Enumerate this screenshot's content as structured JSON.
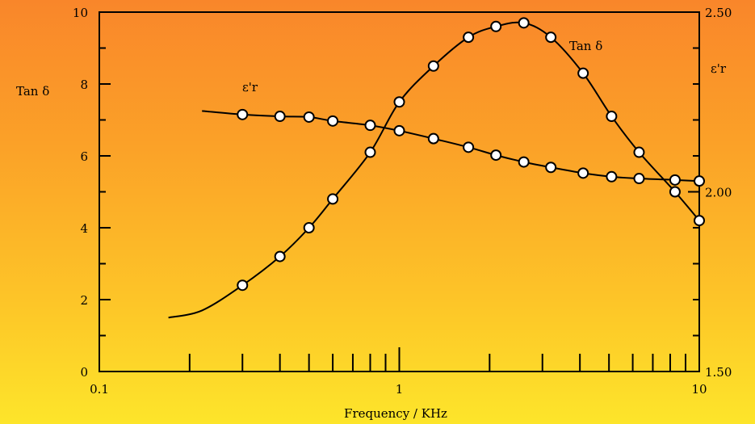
{
  "chart_data": {
    "type": "line",
    "xlabel": "Frequency / KHz",
    "xscale": "log",
    "xlim": [
      0.1,
      10
    ],
    "x_ticks": [
      "0.1",
      "1",
      "10"
    ],
    "ylabel_left": "Tan δ",
    "ylim_left": [
      0,
      10
    ],
    "y_ticks_left": [
      "0",
      "2",
      "4",
      "6",
      "8",
      "10"
    ],
    "ylabel_right": "ε'r",
    "ylim_right": [
      1.5,
      2.5
    ],
    "y_ticks_right": [
      "1.50",
      "2.00",
      "2.50"
    ],
    "grid": false,
    "series": [
      {
        "name": "Tan δ",
        "axis": "left",
        "x": [
          0.3,
          0.4,
          0.5,
          0.6,
          0.8,
          1.0,
          1.3,
          1.7,
          2.1,
          2.6,
          3.2,
          4.1,
          5.1,
          6.3,
          8.3,
          10
        ],
        "y": [
          2.4,
          3.2,
          4.0,
          4.8,
          6.1,
          7.5,
          8.5,
          9.3,
          9.6,
          9.7,
          9.3,
          8.3,
          7.1,
          6.1,
          5.0,
          4.2
        ]
      },
      {
        "name": "ε'r",
        "axis": "right",
        "x": [
          0.3,
          0.4,
          0.5,
          0.6,
          0.8,
          1.0,
          1.3,
          1.7,
          2.1,
          2.6,
          3.2,
          4.1,
          5.1,
          6.3,
          8.3,
          10
        ],
        "y": [
          2.215,
          2.21,
          2.208,
          2.197,
          2.185,
          2.17,
          2.148,
          2.124,
          2.102,
          2.083,
          2.068,
          2.052,
          2.042,
          2.037,
          2.033,
          2.03
        ]
      }
    ],
    "annotations": [
      "Tan δ",
      "ε'r"
    ]
  }
}
